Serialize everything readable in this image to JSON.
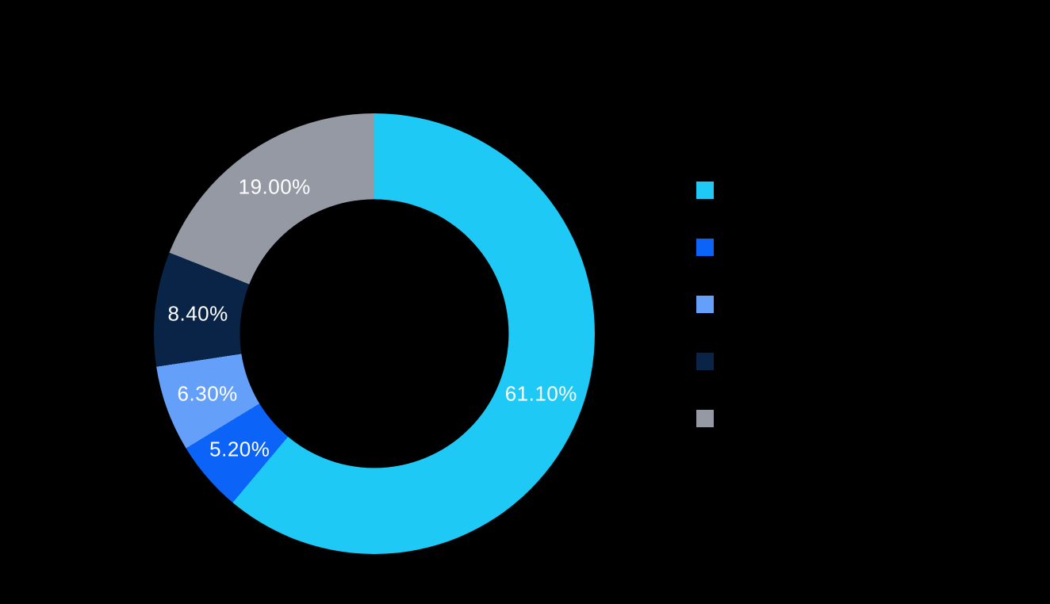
{
  "page": {
    "background_color": "#000000"
  },
  "chart_data": {
    "type": "pie",
    "subtype": "donut",
    "direction": "clockwise",
    "start_angle_deg": 0,
    "inner_radius_ratio": 0.61,
    "label_color": "#FFFFFF",
    "hole_color": "#000000",
    "legend_position": "right",
    "legend_labels_visible": false,
    "categories": [
      "",
      "",
      "",
      "",
      ""
    ],
    "values": [
      61.1,
      5.2,
      6.3,
      8.4,
      19.0
    ],
    "slices": [
      {
        "label": "61.10%",
        "value": 61.1,
        "color": "#1EC9F5"
      },
      {
        "label": "5.20%",
        "value": 5.2,
        "color": "#0B63F7"
      },
      {
        "label": "6.30%",
        "value": 6.3,
        "color": "#64A0FA"
      },
      {
        "label": "8.40%",
        "value": 8.4,
        "color": "#0A2447"
      },
      {
        "label": "19.00%",
        "value": 19.0,
        "color": "#9499A4"
      }
    ]
  }
}
